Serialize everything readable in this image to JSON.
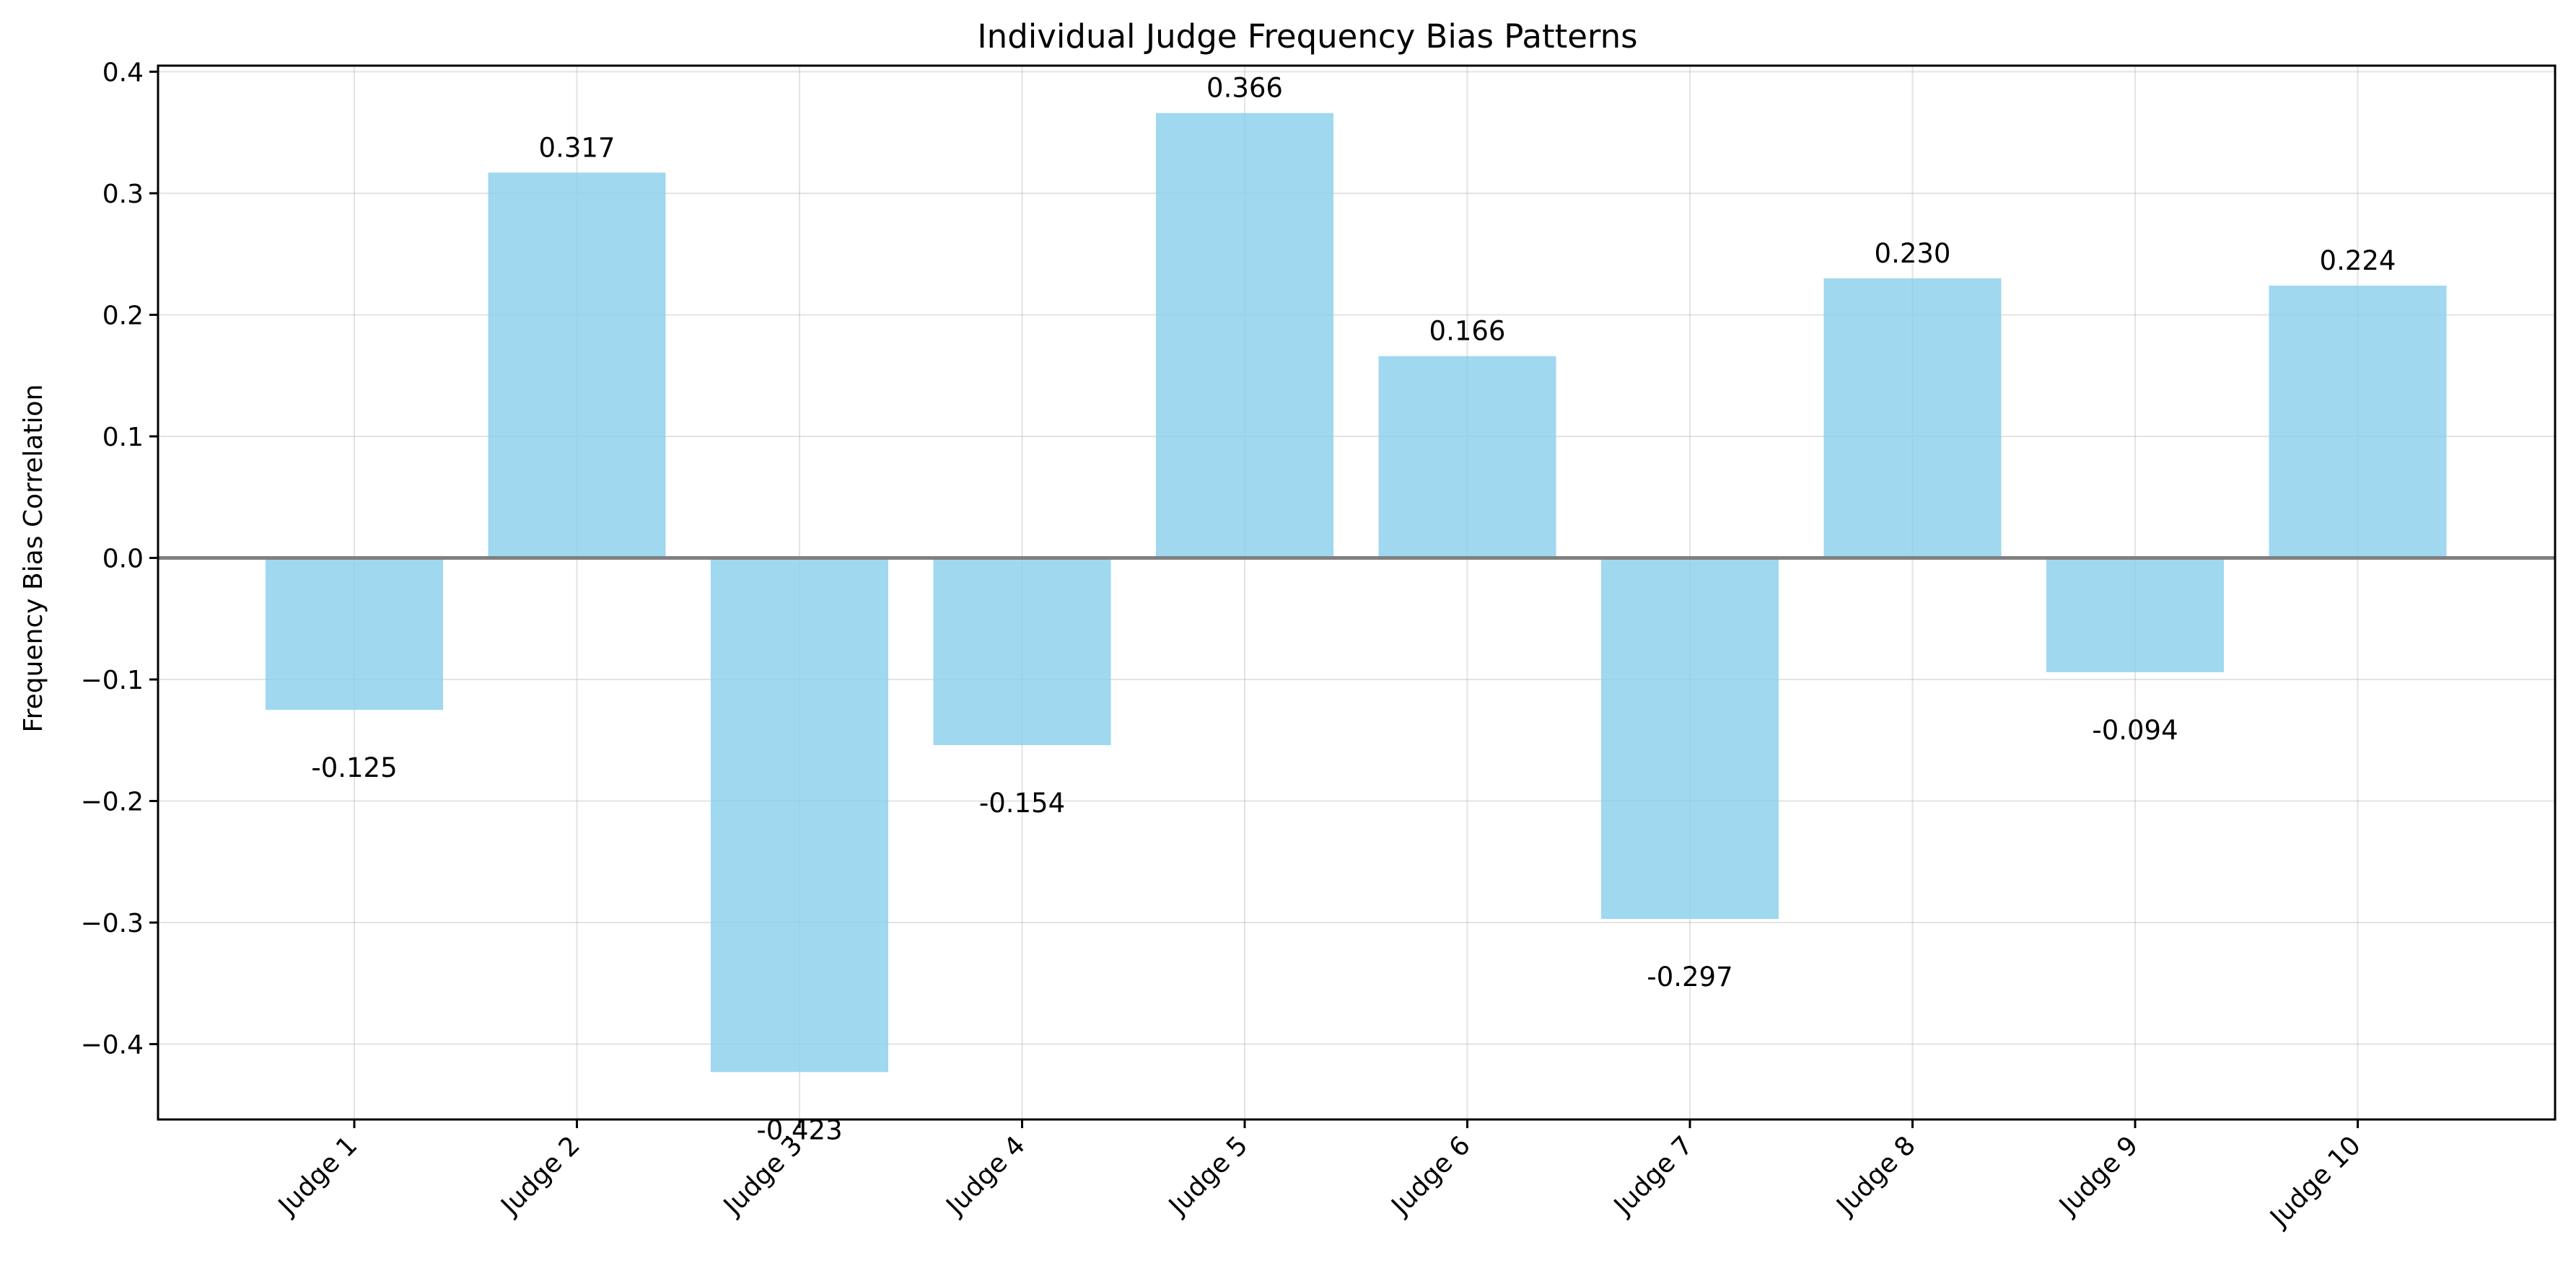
{
  "chart_data": {
    "type": "bar",
    "title": "Individual Judge Frequency Bias Patterns",
    "xlabel": "",
    "ylabel": "Frequency Bias Correlation",
    "categories": [
      "Judge 1",
      "Judge 2",
      "Judge 3",
      "Judge 4",
      "Judge 5",
      "Judge 6",
      "Judge 7",
      "Judge 8",
      "Judge 9",
      "Judge 10"
    ],
    "values": [
      -0.125,
      0.317,
      -0.423,
      -0.154,
      0.366,
      0.166,
      -0.297,
      0.23,
      -0.094,
      0.224
    ],
    "value_labels": [
      "-0.125",
      "0.317",
      "-0.423",
      "-0.154",
      "0.366",
      "0.166",
      "-0.297",
      "0.230",
      "-0.094",
      "0.224"
    ],
    "ylim": [
      -0.462,
      0.405
    ],
    "yticks": [
      -0.4,
      -0.3,
      -0.2,
      -0.1,
      0.0,
      0.1,
      0.2,
      0.3,
      0.4
    ],
    "ytick_labels": [
      "−0.4",
      "−0.3",
      "−0.2",
      "−0.1",
      "0.0",
      "0.1",
      "0.2",
      "0.3",
      "0.4"
    ],
    "grid": true,
    "zero_line": true,
    "colors": {
      "bar": "#87ceeb",
      "zero_line": "#808080",
      "grid": "#b0b0b0"
    }
  }
}
